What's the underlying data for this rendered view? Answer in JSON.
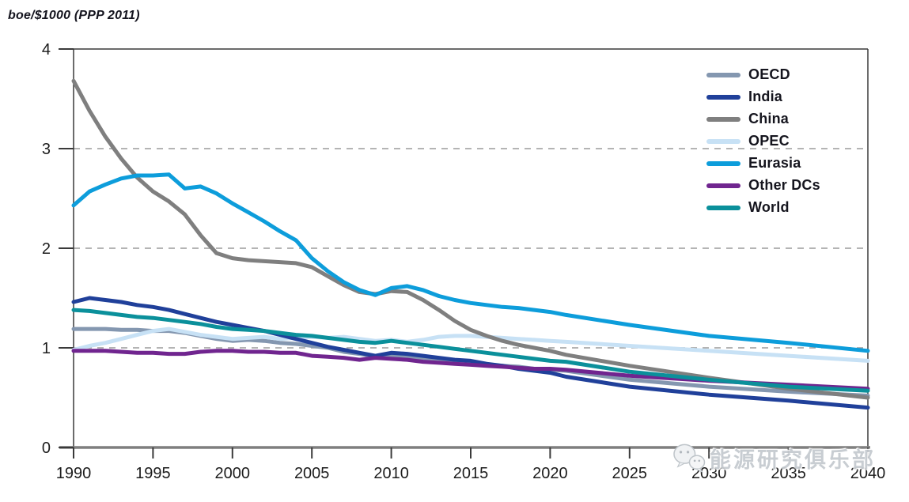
{
  "title": "boe/$1000 (PPP 2011)",
  "watermark": {
    "icon": "wechat-icon",
    "text": "能源研究俱乐部"
  },
  "chart_data": {
    "type": "line",
    "title": "boe/$1000 (PPP 2011)",
    "xlabel": "",
    "ylabel": "boe/$1000 (PPP 2011)",
    "xlim": [
      1990,
      2040
    ],
    "ylim": [
      0,
      4
    ],
    "x_ticks": [
      1990,
      1995,
      2000,
      2005,
      2010,
      2015,
      2020,
      2025,
      2030,
      2035,
      2040
    ],
    "y_ticks": [
      0,
      1,
      2,
      3,
      4
    ],
    "gridlines_y": [
      1,
      2,
      3
    ],
    "grid_style": "dashed",
    "legend_position": "top-right",
    "x": [
      1990,
      1991,
      1992,
      1993,
      1994,
      1995,
      1996,
      1997,
      1998,
      1999,
      2000,
      2001,
      2002,
      2003,
      2004,
      2005,
      2006,
      2007,
      2008,
      2009,
      2010,
      2011,
      2012,
      2013,
      2014,
      2015,
      2016,
      2017,
      2018,
      2019,
      2020,
      2021,
      2025,
      2030,
      2035,
      2040
    ],
    "series": [
      {
        "name": "OECD",
        "color": "#8497B0",
        "values": [
          1.19,
          1.19,
          1.19,
          1.18,
          1.18,
          1.17,
          1.17,
          1.15,
          1.12,
          1.09,
          1.07,
          1.08,
          1.07,
          1.05,
          1.04,
          1.02,
          1.0,
          0.96,
          0.94,
          0.91,
          0.92,
          0.91,
          0.89,
          0.87,
          0.86,
          0.85,
          0.83,
          0.82,
          0.81,
          0.79,
          0.78,
          0.77,
          0.68,
          0.61,
          0.56,
          0.52
        ]
      },
      {
        "name": "India",
        "color": "#20409A",
        "values": [
          1.46,
          1.5,
          1.48,
          1.46,
          1.43,
          1.41,
          1.38,
          1.34,
          1.3,
          1.26,
          1.23,
          1.2,
          1.17,
          1.13,
          1.09,
          1.05,
          1.01,
          0.98,
          0.95,
          0.92,
          0.95,
          0.94,
          0.92,
          0.9,
          0.88,
          0.87,
          0.84,
          0.82,
          0.79,
          0.77,
          0.75,
          0.71,
          0.61,
          0.53,
          0.47,
          0.4
        ]
      },
      {
        "name": "China",
        "color": "#7F7F7F",
        "values": [
          3.68,
          3.38,
          3.12,
          2.9,
          2.71,
          2.57,
          2.47,
          2.34,
          2.13,
          1.95,
          1.9,
          1.88,
          1.87,
          1.86,
          1.85,
          1.81,
          1.72,
          1.63,
          1.56,
          1.54,
          1.57,
          1.56,
          1.48,
          1.38,
          1.27,
          1.18,
          1.12,
          1.07,
          1.03,
          1.0,
          0.97,
          0.93,
          0.82,
          0.7,
          0.59,
          0.5
        ]
      },
      {
        "name": "OPEC",
        "color": "#C7E1F5",
        "values": [
          0.98,
          1.02,
          1.05,
          1.09,
          1.13,
          1.17,
          1.19,
          1.16,
          1.13,
          1.11,
          1.09,
          1.1,
          1.11,
          1.09,
          1.1,
          1.11,
          1.1,
          1.11,
          1.09,
          1.07,
          1.08,
          1.06,
          1.08,
          1.11,
          1.12,
          1.12,
          1.11,
          1.1,
          1.09,
          1.08,
          1.07,
          1.06,
          1.02,
          0.97,
          0.92,
          0.87
        ]
      },
      {
        "name": "Eurasia",
        "color": "#0D9DDB",
        "values": [
          2.43,
          2.57,
          2.64,
          2.7,
          2.73,
          2.73,
          2.74,
          2.6,
          2.62,
          2.55,
          2.45,
          2.36,
          2.27,
          2.17,
          2.08,
          1.9,
          1.77,
          1.66,
          1.58,
          1.53,
          1.6,
          1.62,
          1.58,
          1.52,
          1.48,
          1.45,
          1.43,
          1.41,
          1.4,
          1.38,
          1.36,
          1.33,
          1.23,
          1.12,
          1.05,
          0.97
        ]
      },
      {
        "name": "Other DCs",
        "color": "#70258F",
        "values": [
          0.97,
          0.97,
          0.97,
          0.96,
          0.95,
          0.95,
          0.94,
          0.94,
          0.96,
          0.97,
          0.97,
          0.96,
          0.96,
          0.95,
          0.95,
          0.92,
          0.91,
          0.9,
          0.88,
          0.9,
          0.89,
          0.88,
          0.86,
          0.85,
          0.84,
          0.83,
          0.82,
          0.81,
          0.8,
          0.79,
          0.79,
          0.78,
          0.72,
          0.67,
          0.63,
          0.59
        ]
      },
      {
        "name": "World",
        "color": "#0B909B",
        "values": [
          1.38,
          1.37,
          1.35,
          1.33,
          1.31,
          1.3,
          1.28,
          1.26,
          1.24,
          1.21,
          1.19,
          1.18,
          1.17,
          1.15,
          1.13,
          1.12,
          1.1,
          1.08,
          1.06,
          1.05,
          1.07,
          1.05,
          1.03,
          1.01,
          0.99,
          0.97,
          0.95,
          0.93,
          0.91,
          0.89,
          0.87,
          0.86,
          0.76,
          0.68,
          0.61,
          0.57
        ]
      }
    ]
  }
}
